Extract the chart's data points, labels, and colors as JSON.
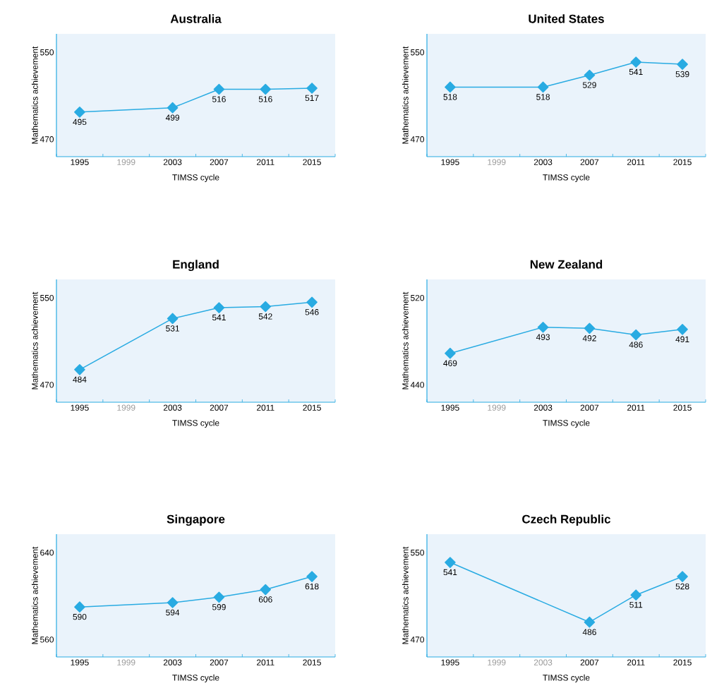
{
  "chart_data": [
    {
      "type": "line",
      "title": "Australia",
      "xlabel": "TIMSS cycle",
      "ylabel": "Mathematics achievement",
      "categories": [
        "1995",
        "1999",
        "2003",
        "2007",
        "2011",
        "2015"
      ],
      "values": [
        495,
        null,
        499,
        516,
        516,
        517
      ],
      "color": "#29abe2",
      "ylim": [
        454,
        567
      ],
      "yticks": [
        470,
        550
      ],
      "marker": "diamond",
      "data_labels": true
    },
    {
      "type": "line",
      "title": "United States",
      "xlabel": "TIMSS cycle",
      "ylabel": "Mathematics achievement",
      "categories": [
        "1995",
        "1999",
        "2003",
        "2007",
        "2011",
        "2015"
      ],
      "values": [
        518,
        null,
        518,
        529,
        541,
        539
      ],
      "color": "#29abe2",
      "ylim": [
        454,
        567
      ],
      "yticks": [
        470,
        550
      ],
      "marker": "diamond",
      "data_labels": true
    },
    {
      "type": "line",
      "title": "England",
      "xlabel": "TIMSS cycle",
      "ylabel": "Mathematics achievement",
      "categories": [
        "1995",
        "1999",
        "2003",
        "2007",
        "2011",
        "2015"
      ],
      "values": [
        484,
        null,
        531,
        541,
        542,
        546
      ],
      "color": "#29abe2",
      "ylim": [
        454,
        567
      ],
      "yticks": [
        470,
        550
      ],
      "marker": "diamond",
      "data_labels": true
    },
    {
      "type": "line",
      "title": "New Zealand",
      "xlabel": "TIMSS cycle",
      "ylabel": "Mathematics achievement",
      "categories": [
        "1995",
        "1999",
        "2003",
        "2007",
        "2011",
        "2015"
      ],
      "values": [
        469,
        null,
        493,
        492,
        486,
        491
      ],
      "color": "#29abe2",
      "ylim": [
        424,
        537
      ],
      "yticks": [
        440,
        520
      ],
      "marker": "diamond",
      "data_labels": true
    },
    {
      "type": "line",
      "title": "Singapore",
      "xlabel": "TIMSS cycle",
      "ylabel": "Mathematics achievement",
      "categories": [
        "1995",
        "1999",
        "2003",
        "2007",
        "2011",
        "2015"
      ],
      "values": [
        590,
        null,
        594,
        599,
        606,
        618
      ],
      "color": "#29abe2",
      "ylim": [
        544,
        657
      ],
      "yticks": [
        560,
        640
      ],
      "marker": "diamond",
      "data_labels": true
    },
    {
      "type": "line",
      "title": "Czech Republic",
      "xlabel": "TIMSS cycle",
      "ylabel": "Mathematics achievement",
      "categories": [
        "1995",
        "1999",
        "2003",
        "2007",
        "2011",
        "2015"
      ],
      "values": [
        541,
        null,
        null,
        486,
        511,
        528
      ],
      "color": "#29abe2",
      "ylim": [
        454,
        567
      ],
      "yticks": [
        470,
        550
      ],
      "marker": "diamond",
      "data_labels": true
    }
  ]
}
